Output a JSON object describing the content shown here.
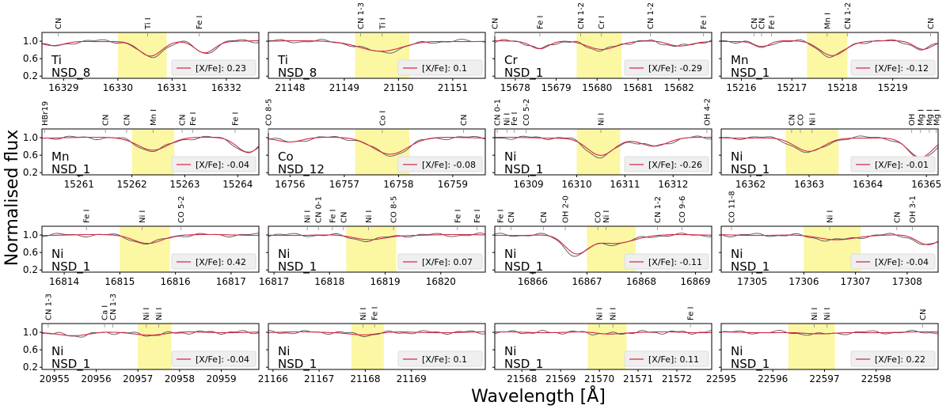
{
  "chart_data": {
    "type": "line",
    "xlabel": "Wavelength [Å]",
    "ylabel": "Normalised flux",
    "ylim": [
      0.15,
      1.2
    ],
    "yticks": [
      "1.0",
      "0.6",
      "0.2"
    ],
    "legend_prefix": "[X/Fe]: ",
    "colors": {
      "observed": "#555555",
      "model": "#d62748",
      "highlight": "#fbf7a3"
    },
    "panels": [
      {
        "element": "Ti",
        "field": "NSD_8",
        "xfe": "0.23",
        "xrange": [
          16328.6,
          16332.6
        ],
        "xticks": [
          16329,
          16330,
          16331,
          16332
        ],
        "highlight": [
          16330.0,
          16330.9
        ],
        "lines": [
          {
            "x": 16328.9,
            "label": "CN"
          },
          {
            "x": 16330.55,
            "label": "Ti I"
          },
          {
            "x": 16331.5,
            "label": "Fe I"
          }
        ],
        "dips": [
          {
            "c": 16330.6,
            "d": 0.38,
            "w": 0.3
          },
          {
            "c": 16331.6,
            "d": 0.28,
            "w": 0.25
          },
          {
            "c": 16328.8,
            "d": 0.12,
            "w": 0.3
          }
        ]
      },
      {
        "element": "Ti",
        "field": "NSD_8",
        "xfe": "0.1",
        "xrange": [
          21147.6,
          21151.6
        ],
        "xticks": [
          21148,
          21149,
          21150,
          21151
        ],
        "highlight": [
          21149.2,
          21150.2
        ],
        "lines": [
          {
            "x": 21149.3,
            "label": "CN 1-3"
          },
          {
            "x": 21149.7,
            "label": "Ti I"
          }
        ],
        "dips": [
          {
            "c": 21149.7,
            "d": 0.25,
            "w": 0.55
          }
        ]
      },
      {
        "element": "Cr",
        "field": "NSD_1",
        "xfe": "-0.29",
        "xrange": [
          15677.5,
          15682.8
        ],
        "xticks": [
          15678,
          15679,
          15680,
          15681,
          15682
        ],
        "highlight": [
          15679.5,
          15680.6
        ],
        "lines": [
          {
            "x": 15677.5,
            "label": "CN"
          },
          {
            "x": 15678.6,
            "label": "Fe I"
          },
          {
            "x": 15679.6,
            "label": "CN 1-2"
          },
          {
            "x": 15680.1,
            "label": "Cr I"
          },
          {
            "x": 15681.3,
            "label": "CN 1-2"
          },
          {
            "x": 15682.6,
            "label": "Fe I"
          }
        ],
        "dips": [
          {
            "c": 15678.6,
            "d": 0.18,
            "w": 0.3
          },
          {
            "c": 15680.1,
            "d": 0.2,
            "w": 0.5
          },
          {
            "c": 15682.0,
            "d": 0.12,
            "w": 0.4
          }
        ]
      },
      {
        "element": "Mn",
        "field": "NSD_1",
        "xfe": "-0.12",
        "xrange": [
          15215.6,
          15219.9
        ],
        "xticks": [
          15216,
          15217,
          15218,
          15219
        ],
        "highlight": [
          15217.3,
          15218.1
        ],
        "lines": [
          {
            "x": 15216.25,
            "label": "CN"
          },
          {
            "x": 15216.4,
            "label": "CN"
          },
          {
            "x": 15216.6,
            "label": "Fe I"
          },
          {
            "x": 15217.7,
            "label": "Mn I"
          },
          {
            "x": 15218.1,
            "label": "CN 1-2"
          },
          {
            "x": 15219.75,
            "label": "CN"
          }
        ],
        "dips": [
          {
            "c": 15216.4,
            "d": 0.15,
            "w": 0.2
          },
          {
            "c": 15217.8,
            "d": 0.35,
            "w": 0.35
          },
          {
            "c": 15219.6,
            "d": 0.2,
            "w": 0.25
          }
        ]
      },
      {
        "element": "Mn",
        "field": "NSD_1",
        "xfe": "-0.04",
        "xrange": [
          15260.3,
          15264.4
        ],
        "xticks": [
          15261,
          15262,
          15263,
          15264
        ],
        "highlight": [
          15262.0,
          15262.8
        ],
        "lines": [
          {
            "x": 15260.35,
            "label": "HBr19"
          },
          {
            "x": 15261.5,
            "label": "CN"
          },
          {
            "x": 15261.9,
            "label": "CN"
          },
          {
            "x": 15262.4,
            "label": "Mn I"
          },
          {
            "x": 15262.95,
            "label": "CN"
          },
          {
            "x": 15263.15,
            "label": "Fe I"
          },
          {
            "x": 15263.95,
            "label": "Fe I"
          }
        ],
        "dips": [
          {
            "c": 15262.4,
            "d": 0.3,
            "w": 0.4
          },
          {
            "c": 15264.2,
            "d": 0.35,
            "w": 0.3
          }
        ]
      },
      {
        "element": "Co",
        "field": "NSD_12",
        "xfe": "-0.08",
        "xrange": [
          16755.6,
          16759.6
        ],
        "xticks": [
          16756,
          16757,
          16758,
          16759
        ],
        "highlight": [
          16757.2,
          16758.2
        ],
        "lines": [
          {
            "x": 16755.6,
            "label": "CO 8-5"
          },
          {
            "x": 16757.7,
            "label": "Co I"
          },
          {
            "x": 16759.2,
            "label": "CN"
          }
        ],
        "dips": [
          {
            "c": 16757.85,
            "d": 0.4,
            "w": 0.45
          },
          {
            "c": 16756.0,
            "d": 0.1,
            "w": 0.3
          }
        ]
      },
      {
        "element": "Ni",
        "field": "NSD_1",
        "xfe": "-0.26",
        "xrange": [
          16308.3,
          16312.8
        ],
        "xticks": [
          16309,
          16310,
          16311,
          16312
        ],
        "highlight": [
          16310.0,
          16310.9
        ],
        "lines": [
          {
            "x": 16308.35,
            "label": "CN 0-1"
          },
          {
            "x": 16308.55,
            "label": "Ni I"
          },
          {
            "x": 16308.7,
            "label": "Fe I"
          },
          {
            "x": 16308.95,
            "label": "CO 5-2"
          },
          {
            "x": 16310.5,
            "label": "Ni I"
          },
          {
            "x": 16312.7,
            "label": "OH 4-2"
          }
        ],
        "dips": [
          {
            "c": 16310.5,
            "d": 0.45,
            "w": 0.4
          },
          {
            "c": 16311.6,
            "d": 0.2,
            "w": 0.4
          }
        ]
      },
      {
        "element": "Ni",
        "field": "NSD_1",
        "xfe": "-0.01",
        "xrange": [
          16361.5,
          16365.2
        ],
        "xticks": [
          16362,
          16363,
          16364,
          16365
        ],
        "highlight": [
          16362.6,
          16363.5
        ],
        "lines": [
          {
            "x": 16362.7,
            "label": "CN"
          },
          {
            "x": 16362.85,
            "label": "CO"
          },
          {
            "x": 16363.05,
            "label": "Ni I"
          },
          {
            "x": 16364.75,
            "label": "OH"
          },
          {
            "x": 16364.9,
            "label": "Mg I"
          },
          {
            "x": 16365.05,
            "label": "Mg I"
          },
          {
            "x": 16365.17,
            "label": "Mg I"
          }
        ],
        "dips": [
          {
            "c": 16363.0,
            "d": 0.35,
            "w": 0.35
          },
          {
            "c": 16364.9,
            "d": 0.5,
            "w": 0.3
          }
        ]
      },
      {
        "element": "Ni",
        "field": "NSD_1",
        "xfe": "0.42",
        "xrange": [
          16813.6,
          16817.5
        ],
        "xticks": [
          16814,
          16815,
          16816,
          16817
        ],
        "highlight": [
          16815.0,
          16815.9
        ],
        "lines": [
          {
            "x": 16814.4,
            "label": "Fe I"
          },
          {
            "x": 16815.4,
            "label": "Ni I"
          },
          {
            "x": 16816.1,
            "label": "CO 5-2"
          }
        ],
        "dips": [
          {
            "c": 16815.5,
            "d": 0.2,
            "w": 0.35
          }
        ]
      },
      {
        "element": "Ni",
        "field": "NSD_1",
        "xfe": "0.07",
        "xrange": [
          16816.9,
          16820.8
        ],
        "xticks": [
          16817,
          16818,
          16819,
          16820
        ],
        "highlight": [
          16818.3,
          16819.2
        ],
        "lines": [
          {
            "x": 16817.6,
            "label": "Ni I"
          },
          {
            "x": 16817.8,
            "label": "CN 0-1"
          },
          {
            "x": 16818.05,
            "label": "Fe I"
          },
          {
            "x": 16818.25,
            "label": "CN"
          },
          {
            "x": 16818.7,
            "label": "Ni I"
          },
          {
            "x": 16819.15,
            "label": "CO 8-5"
          },
          {
            "x": 16820.3,
            "label": "Fe I"
          },
          {
            "x": 16820.65,
            "label": "Fe I"
          }
        ],
        "dips": [
          {
            "c": 16818.7,
            "d": 0.12,
            "w": 0.4
          }
        ]
      },
      {
        "element": "Ni",
        "field": "NSD_1",
        "xfe": "-0.11",
        "xrange": [
          16865.3,
          16869.3
        ],
        "xticks": [
          16866,
          16867,
          16868,
          16869
        ],
        "highlight": [
          16867.0,
          16867.9
        ],
        "lines": [
          {
            "x": 16865.4,
            "label": "Fe I"
          },
          {
            "x": 16865.6,
            "label": "CN"
          },
          {
            "x": 16866.2,
            "label": "CN"
          },
          {
            "x": 16866.6,
            "label": "OH 2-0"
          },
          {
            "x": 16867.2,
            "label": "CO"
          },
          {
            "x": 16867.35,
            "label": "Ni I"
          },
          {
            "x": 16868.3,
            "label": "CN 1-2"
          },
          {
            "x": 16868.75,
            "label": "CO 9-6"
          }
        ],
        "dips": [
          {
            "c": 16866.8,
            "d": 0.45,
            "w": 0.3
          },
          {
            "c": 16867.5,
            "d": 0.2,
            "w": 0.5
          }
        ]
      },
      {
        "element": "Ni",
        "field": "NSD_1",
        "xfe": "-0.04",
        "xrange": [
          17304.4,
          17308.6
        ],
        "xticks": [
          17305,
          17306,
          17307,
          17308
        ],
        "highlight": [
          17306.0,
          17307.1
        ],
        "lines": [
          {
            "x": 17304.6,
            "label": "CO 11-8"
          },
          {
            "x": 17306.5,
            "label": "Ni I"
          },
          {
            "x": 17307.8,
            "label": "CN"
          },
          {
            "x": 17308.1,
            "label": "OH 3-1"
          }
        ],
        "dips": [
          {
            "c": 17306.6,
            "d": 0.12,
            "w": 0.5
          },
          {
            "c": 17308.4,
            "d": 0.25,
            "w": 0.3
          }
        ]
      },
      {
        "element": "Ni",
        "field": "NSD_1",
        "xfe": "-0.04",
        "xrange": [
          20954.7,
          20959.9
        ],
        "xticks": [
          20955,
          20956,
          20957,
          20958,
          20959
        ],
        "highlight": [
          20957.0,
          20957.8
        ],
        "lines": [
          {
            "x": 20954.85,
            "label": "CN 1-3"
          },
          {
            "x": 20956.2,
            "label": "Ca I"
          },
          {
            "x": 20956.4,
            "label": "CN 1-3"
          },
          {
            "x": 20957.2,
            "label": "Ni I"
          },
          {
            "x": 20957.5,
            "label": "Ni I"
          }
        ],
        "dips": [
          {
            "c": 20955.5,
            "d": 0.08,
            "w": 0.5
          },
          {
            "c": 20957.3,
            "d": 0.06,
            "w": 0.5
          }
        ]
      },
      {
        "element": "Ni",
        "field": "NSD_1",
        "xfe": "0.1",
        "xrange": [
          21165.9,
          21170.6
        ],
        "xticks": [
          21166,
          21167,
          21168,
          21169
        ],
        "highlight": [
          21167.7,
          21168.4
        ],
        "lines": [
          {
            "x": 21167.95,
            "label": "Ni I"
          },
          {
            "x": 21168.2,
            "label": "Fe I"
          }
        ],
        "dips": [
          {
            "c": 21168.0,
            "d": 0.06,
            "w": 0.4
          }
        ]
      },
      {
        "element": "Ni",
        "field": "NSD_1",
        "xfe": "0.11",
        "xrange": [
          21567.3,
          21572.9
        ],
        "xticks": [
          21568,
          21569,
          21570,
          21571,
          21572
        ],
        "highlight": [
          21569.7,
          21570.7
        ],
        "lines": [
          {
            "x": 21570.0,
            "label": "Ni I"
          },
          {
            "x": 21570.35,
            "label": "Ni I"
          },
          {
            "x": 21572.35,
            "label": "Fe I"
          }
        ],
        "dips": [
          {
            "c": 21570.2,
            "d": 0.04,
            "w": 0.4
          }
        ]
      },
      {
        "element": "Ni",
        "field": "NSD_1",
        "xfe": "0.22",
        "xrange": [
          22595.0,
          22599.2
        ],
        "xticks": [
          22595,
          22596,
          22597,
          22598
        ],
        "highlight": [
          22596.3,
          22597.2
        ],
        "lines": [
          {
            "x": 22596.8,
            "label": "Ni I"
          },
          {
            "x": 22597.05,
            "label": "Ni I"
          },
          {
            "x": 22598.9,
            "label": "CN"
          }
        ],
        "dips": [
          {
            "c": 22596.9,
            "d": 0.05,
            "w": 0.4
          }
        ]
      }
    ]
  }
}
